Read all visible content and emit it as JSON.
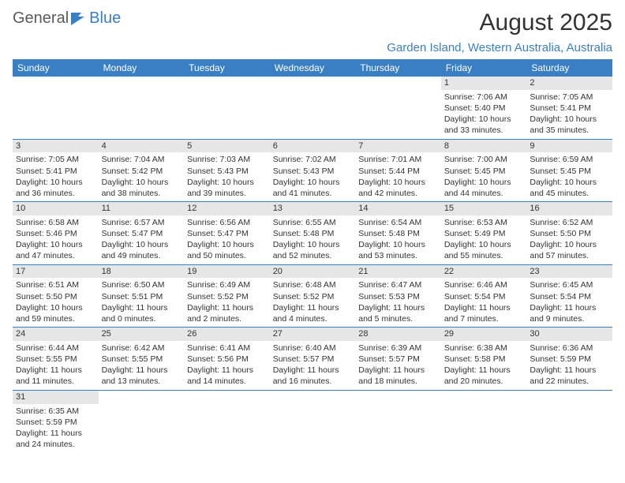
{
  "logo": {
    "text_a": "General",
    "text_b": "Blue"
  },
  "title": "August 2025",
  "location": "Garden Island, Western Australia, Australia",
  "colors": {
    "header_bg": "#3a7fc4",
    "header_text": "#ffffff",
    "accent": "#3a7fc4",
    "daynum_bg": "#e6e6e6",
    "body_text": "#333333",
    "background": "#ffffff"
  },
  "calendar": {
    "day_headers": [
      "Sunday",
      "Monday",
      "Tuesday",
      "Wednesday",
      "Thursday",
      "Friday",
      "Saturday"
    ],
    "weeks": [
      [
        null,
        null,
        null,
        null,
        null,
        {
          "n": "1",
          "sunrise": "Sunrise: 7:06 AM",
          "sunset": "Sunset: 5:40 PM",
          "day1": "Daylight: 10 hours",
          "day2": "and 33 minutes."
        },
        {
          "n": "2",
          "sunrise": "Sunrise: 7:05 AM",
          "sunset": "Sunset: 5:41 PM",
          "day1": "Daylight: 10 hours",
          "day2": "and 35 minutes."
        }
      ],
      [
        {
          "n": "3",
          "sunrise": "Sunrise: 7:05 AM",
          "sunset": "Sunset: 5:41 PM",
          "day1": "Daylight: 10 hours",
          "day2": "and 36 minutes."
        },
        {
          "n": "4",
          "sunrise": "Sunrise: 7:04 AM",
          "sunset": "Sunset: 5:42 PM",
          "day1": "Daylight: 10 hours",
          "day2": "and 38 minutes."
        },
        {
          "n": "5",
          "sunrise": "Sunrise: 7:03 AM",
          "sunset": "Sunset: 5:43 PM",
          "day1": "Daylight: 10 hours",
          "day2": "and 39 minutes."
        },
        {
          "n": "6",
          "sunrise": "Sunrise: 7:02 AM",
          "sunset": "Sunset: 5:43 PM",
          "day1": "Daylight: 10 hours",
          "day2": "and 41 minutes."
        },
        {
          "n": "7",
          "sunrise": "Sunrise: 7:01 AM",
          "sunset": "Sunset: 5:44 PM",
          "day1": "Daylight: 10 hours",
          "day2": "and 42 minutes."
        },
        {
          "n": "8",
          "sunrise": "Sunrise: 7:00 AM",
          "sunset": "Sunset: 5:45 PM",
          "day1": "Daylight: 10 hours",
          "day2": "and 44 minutes."
        },
        {
          "n": "9",
          "sunrise": "Sunrise: 6:59 AM",
          "sunset": "Sunset: 5:45 PM",
          "day1": "Daylight: 10 hours",
          "day2": "and 45 minutes."
        }
      ],
      [
        {
          "n": "10",
          "sunrise": "Sunrise: 6:58 AM",
          "sunset": "Sunset: 5:46 PM",
          "day1": "Daylight: 10 hours",
          "day2": "and 47 minutes."
        },
        {
          "n": "11",
          "sunrise": "Sunrise: 6:57 AM",
          "sunset": "Sunset: 5:47 PM",
          "day1": "Daylight: 10 hours",
          "day2": "and 49 minutes."
        },
        {
          "n": "12",
          "sunrise": "Sunrise: 6:56 AM",
          "sunset": "Sunset: 5:47 PM",
          "day1": "Daylight: 10 hours",
          "day2": "and 50 minutes."
        },
        {
          "n": "13",
          "sunrise": "Sunrise: 6:55 AM",
          "sunset": "Sunset: 5:48 PM",
          "day1": "Daylight: 10 hours",
          "day2": "and 52 minutes."
        },
        {
          "n": "14",
          "sunrise": "Sunrise: 6:54 AM",
          "sunset": "Sunset: 5:48 PM",
          "day1": "Daylight: 10 hours",
          "day2": "and 53 minutes."
        },
        {
          "n": "15",
          "sunrise": "Sunrise: 6:53 AM",
          "sunset": "Sunset: 5:49 PM",
          "day1": "Daylight: 10 hours",
          "day2": "and 55 minutes."
        },
        {
          "n": "16",
          "sunrise": "Sunrise: 6:52 AM",
          "sunset": "Sunset: 5:50 PM",
          "day1": "Daylight: 10 hours",
          "day2": "and 57 minutes."
        }
      ],
      [
        {
          "n": "17",
          "sunrise": "Sunrise: 6:51 AM",
          "sunset": "Sunset: 5:50 PM",
          "day1": "Daylight: 10 hours",
          "day2": "and 59 minutes."
        },
        {
          "n": "18",
          "sunrise": "Sunrise: 6:50 AM",
          "sunset": "Sunset: 5:51 PM",
          "day1": "Daylight: 11 hours",
          "day2": "and 0 minutes."
        },
        {
          "n": "19",
          "sunrise": "Sunrise: 6:49 AM",
          "sunset": "Sunset: 5:52 PM",
          "day1": "Daylight: 11 hours",
          "day2": "and 2 minutes."
        },
        {
          "n": "20",
          "sunrise": "Sunrise: 6:48 AM",
          "sunset": "Sunset: 5:52 PM",
          "day1": "Daylight: 11 hours",
          "day2": "and 4 minutes."
        },
        {
          "n": "21",
          "sunrise": "Sunrise: 6:47 AM",
          "sunset": "Sunset: 5:53 PM",
          "day1": "Daylight: 11 hours",
          "day2": "and 5 minutes."
        },
        {
          "n": "22",
          "sunrise": "Sunrise: 6:46 AM",
          "sunset": "Sunset: 5:54 PM",
          "day1": "Daylight: 11 hours",
          "day2": "and 7 minutes."
        },
        {
          "n": "23",
          "sunrise": "Sunrise: 6:45 AM",
          "sunset": "Sunset: 5:54 PM",
          "day1": "Daylight: 11 hours",
          "day2": "and 9 minutes."
        }
      ],
      [
        {
          "n": "24",
          "sunrise": "Sunrise: 6:44 AM",
          "sunset": "Sunset: 5:55 PM",
          "day1": "Daylight: 11 hours",
          "day2": "and 11 minutes."
        },
        {
          "n": "25",
          "sunrise": "Sunrise: 6:42 AM",
          "sunset": "Sunset: 5:55 PM",
          "day1": "Daylight: 11 hours",
          "day2": "and 13 minutes."
        },
        {
          "n": "26",
          "sunrise": "Sunrise: 6:41 AM",
          "sunset": "Sunset: 5:56 PM",
          "day1": "Daylight: 11 hours",
          "day2": "and 14 minutes."
        },
        {
          "n": "27",
          "sunrise": "Sunrise: 6:40 AM",
          "sunset": "Sunset: 5:57 PM",
          "day1": "Daylight: 11 hours",
          "day2": "and 16 minutes."
        },
        {
          "n": "28",
          "sunrise": "Sunrise: 6:39 AM",
          "sunset": "Sunset: 5:57 PM",
          "day1": "Daylight: 11 hours",
          "day2": "and 18 minutes."
        },
        {
          "n": "29",
          "sunrise": "Sunrise: 6:38 AM",
          "sunset": "Sunset: 5:58 PM",
          "day1": "Daylight: 11 hours",
          "day2": "and 20 minutes."
        },
        {
          "n": "30",
          "sunrise": "Sunrise: 6:36 AM",
          "sunset": "Sunset: 5:59 PM",
          "day1": "Daylight: 11 hours",
          "day2": "and 22 minutes."
        }
      ],
      [
        {
          "n": "31",
          "sunrise": "Sunrise: 6:35 AM",
          "sunset": "Sunset: 5:59 PM",
          "day1": "Daylight: 11 hours",
          "day2": "and 24 minutes."
        },
        null,
        null,
        null,
        null,
        null,
        null
      ]
    ]
  }
}
